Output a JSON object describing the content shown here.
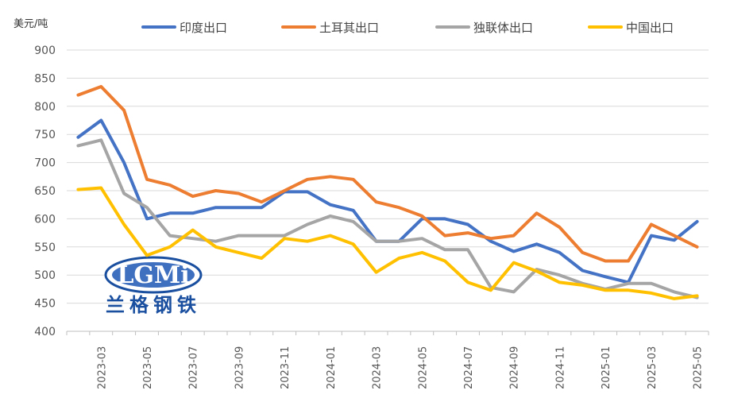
{
  "chart_data": {
    "type": "line",
    "ylabel": "美元/吨",
    "ylim": [
      400,
      900
    ],
    "yticks": [
      400,
      450,
      500,
      550,
      600,
      650,
      700,
      750,
      800,
      850,
      900
    ],
    "grid": "horizontal",
    "legend_position": "top",
    "x": [
      "2023-02",
      "2023-03",
      "2023-04",
      "2023-05",
      "2023-06",
      "2023-07",
      "2023-08",
      "2023-09",
      "2023-10",
      "2023-11",
      "2023-12",
      "2024-01",
      "2024-02",
      "2024-03",
      "2024-04",
      "2024-05",
      "2024-06",
      "2024-07",
      "2024-08",
      "2024-09",
      "2024-10",
      "2024-11",
      "2024-12",
      "2025-01",
      "2025-02",
      "2025-03",
      "2025-04",
      "2025-05"
    ],
    "x_tick_labels": [
      "2023-03",
      "2023-05",
      "2023-07",
      "2023-09",
      "2023-11",
      "2024-01",
      "2024-03",
      "2024-05",
      "2024-07",
      "2024-09",
      "2024-11",
      "2025-01",
      "2025-03",
      "2025-05"
    ],
    "series": [
      {
        "name": "印度出口",
        "color": "#4472C4",
        "values": [
          745,
          775,
          700,
          600,
          610,
          610,
          620,
          620,
          620,
          648,
          648,
          625,
          615,
          560,
          560,
          600,
          600,
          590,
          560,
          542,
          555,
          540,
          508,
          497,
          487,
          570,
          562,
          595
        ]
      },
      {
        "name": "土耳其出口",
        "color": "#ED7D31",
        "values": [
          820,
          835,
          793,
          670,
          660,
          640,
          650,
          645,
          630,
          650,
          670,
          675,
          670,
          630,
          620,
          605,
          570,
          575,
          565,
          570,
          610,
          585,
          540,
          525,
          525,
          590,
          570,
          550
        ]
      },
      {
        "name": "独联体出口",
        "color": "#A5A5A5",
        "values": [
          730,
          740,
          645,
          620,
          570,
          565,
          560,
          570,
          570,
          570,
          590,
          605,
          595,
          560,
          560,
          565,
          545,
          545,
          478,
          470,
          510,
          500,
          485,
          475,
          485,
          485,
          470,
          460
        ]
      },
      {
        "name": "中国出口",
        "color": "#FFC000",
        "values": [
          652,
          655,
          590,
          535,
          550,
          580,
          550,
          540,
          530,
          565,
          560,
          570,
          555,
          505,
          530,
          540,
          525,
          487,
          473,
          522,
          507,
          487,
          482,
          473,
          473,
          468,
          458,
          463
        ]
      }
    ]
  },
  "watermark": {
    "logo_text": "LGMi",
    "chinese_text": "兰格钢铁"
  }
}
